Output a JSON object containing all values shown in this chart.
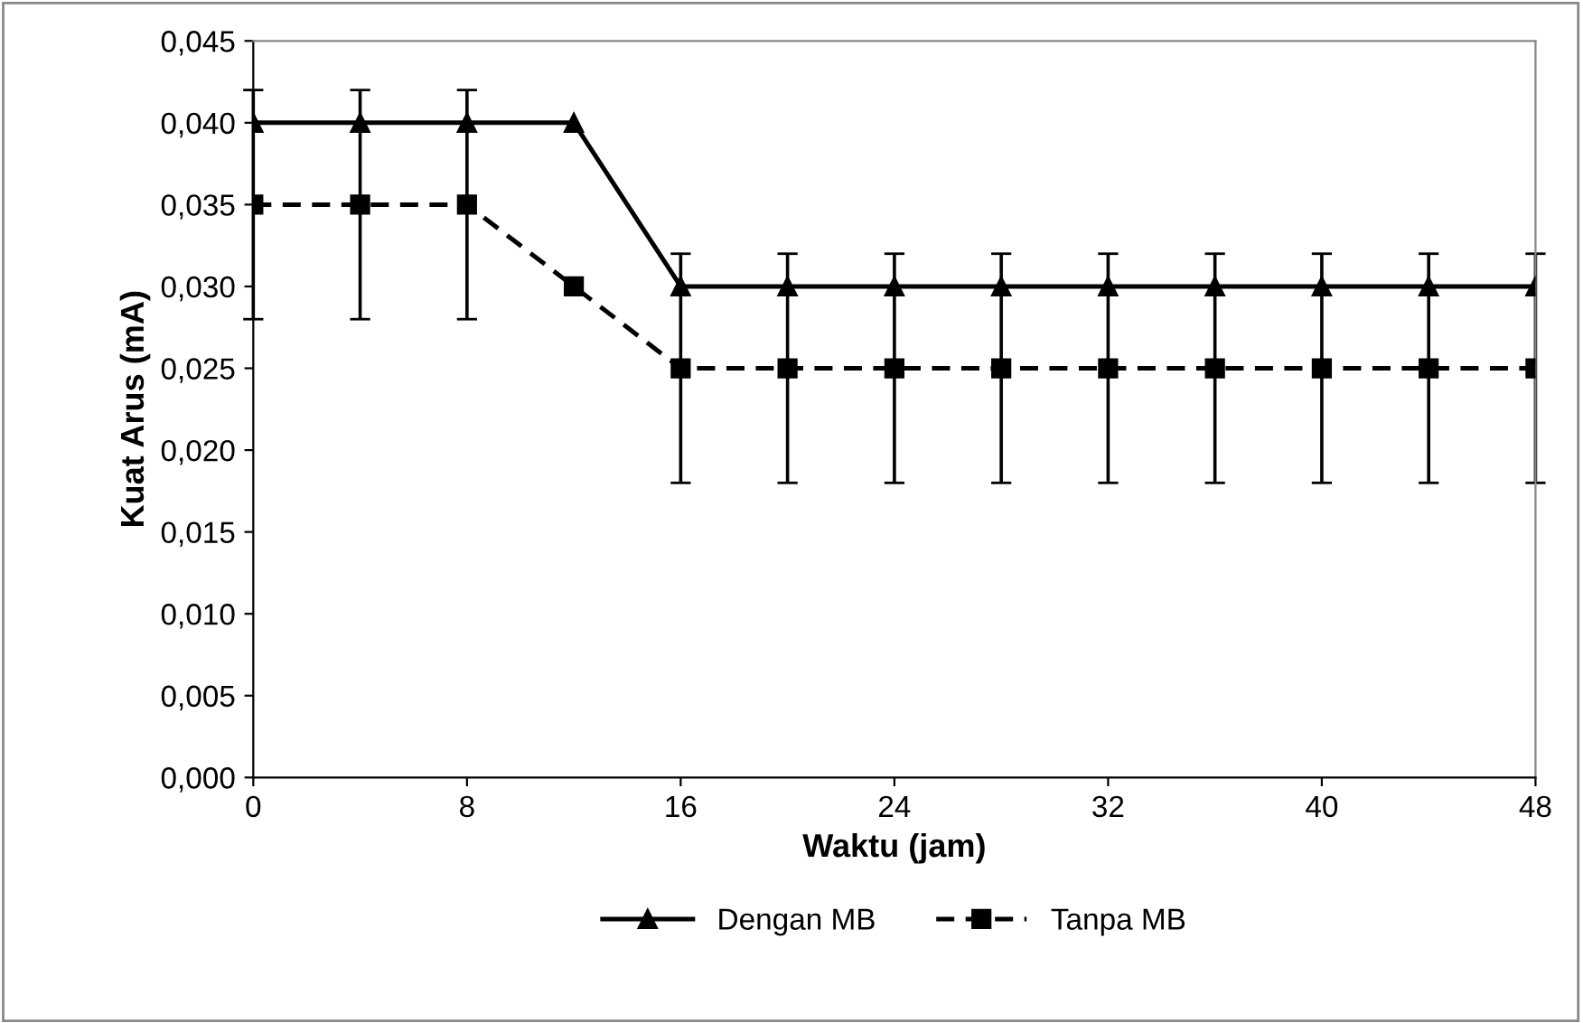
{
  "chart_data": {
    "type": "line",
    "xlabel": "Waktu (jam)",
    "ylabel": "Kuat Arus (mA)",
    "x": [
      0,
      4,
      8,
      12,
      16,
      20,
      24,
      28,
      32,
      36,
      40,
      44,
      48
    ],
    "series": [
      {
        "name": "Dengan MB",
        "color": "#000000",
        "marker": "triangle",
        "line_style": "solid",
        "values": [
          0.04,
          0.04,
          0.04,
          0.04,
          0.03,
          0.03,
          0.03,
          0.03,
          0.03,
          0.03,
          0.03,
          0.03,
          0.03
        ]
      },
      {
        "name": "Tanpa MB",
        "color": "#000000",
        "marker": "square",
        "line_style": "dashed",
        "values": [
          0.035,
          0.035,
          0.035,
          0.03,
          0.025,
          0.025,
          0.025,
          0.025,
          0.025,
          0.025,
          0.025,
          0.025,
          0.025
        ],
        "errors": [
          0.007,
          0.007,
          0.007,
          null,
          0.007,
          0.007,
          0.007,
          0.007,
          0.007,
          0.007,
          0.007,
          0.007,
          0.007
        ]
      }
    ],
    "xlim": [
      0,
      48
    ],
    "xticks": [
      0,
      8,
      16,
      24,
      32,
      40,
      48
    ],
    "ylim": [
      0,
      0.045
    ],
    "yticks": [
      {
        "value": 0,
        "label": "0,000"
      },
      {
        "value": 0.005,
        "label": "0,005"
      },
      {
        "value": 0.01,
        "label": "0,010"
      },
      {
        "value": 0.015,
        "label": "0,015"
      },
      {
        "value": 0.02,
        "label": "0,020"
      },
      {
        "value": 0.025,
        "label": "0,025"
      },
      {
        "value": 0.03,
        "label": "0,030"
      },
      {
        "value": 0.035,
        "label": "0,035"
      },
      {
        "value": 0.04,
        "label": "0,040"
      },
      {
        "value": 0.045,
        "label": "0,045"
      }
    ],
    "grid": false,
    "legend": "bottom"
  }
}
